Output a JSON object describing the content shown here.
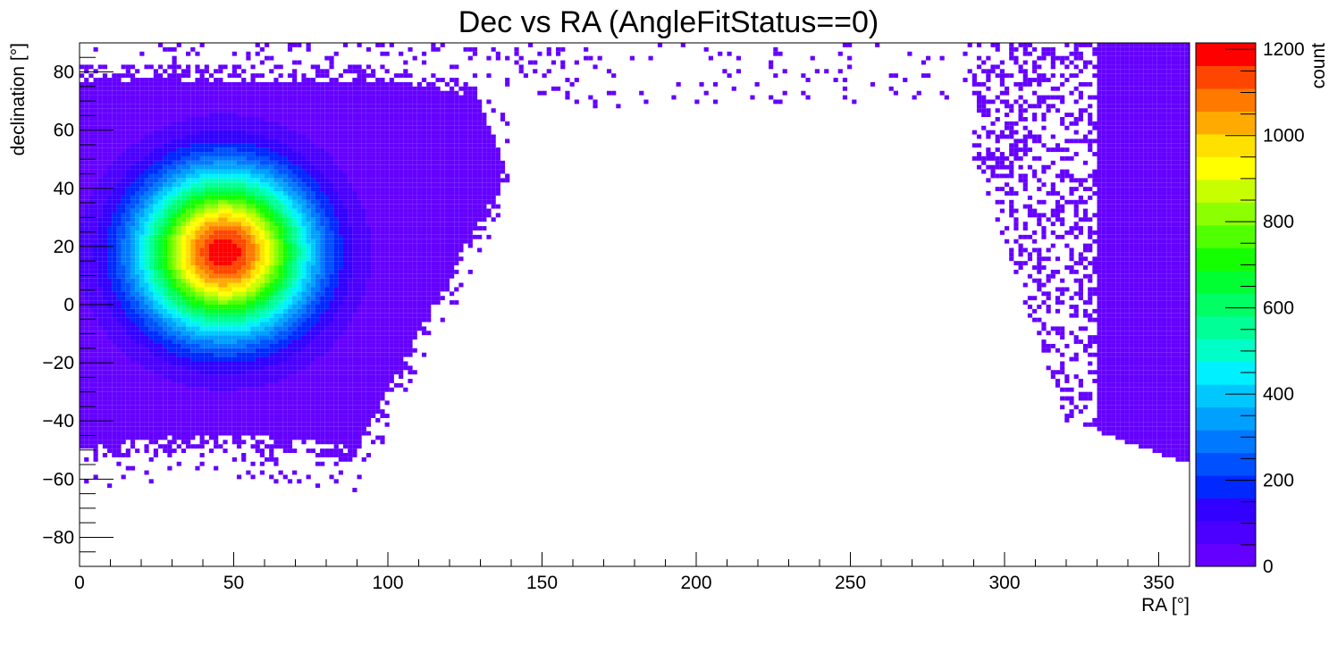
{
  "chart_data": {
    "type": "heatmap",
    "title": "Dec vs RA (AngleFitStatus==0)",
    "xlabel": "RA [°]",
    "ylabel": "declination [°]",
    "zlabel": "count",
    "xlim": [
      0,
      360
    ],
    "ylim": [
      -90,
      90
    ],
    "zlim": [
      0,
      1215
    ],
    "x_ticks": [
      0,
      50,
      100,
      150,
      200,
      250,
      300,
      350
    ],
    "y_ticks": [
      -80,
      -60,
      -40,
      -20,
      0,
      20,
      40,
      60,
      80
    ],
    "z_ticks": [
      0,
      200,
      400,
      600,
      800,
      1000,
      1200
    ],
    "x_tick_labels": [
      "0",
      "50",
      "100",
      "150",
      "200",
      "250",
      "300",
      "350"
    ],
    "y_tick_labels": [
      "−80",
      "−60",
      "−40",
      "−20",
      "0",
      "20",
      "40",
      "60",
      "80"
    ],
    "z_tick_labels": [
      "0",
      "200",
      "400",
      "600",
      "800",
      "1000",
      "1200"
    ],
    "hotspot": {
      "ra": 47,
      "dec": 18,
      "peak_count": 1200
    },
    "coverage": "dense band RA 0–130 and 320–360, sparse arc reaching dec ~ 85 between RA 150 and 320",
    "grid": false,
    "legend": "color scale right",
    "palette": [
      "#6400ff",
      "#4b00ff",
      "#3200ff",
      "#0028ff",
      "#0050ff",
      "#0078ff",
      "#00a0ff",
      "#00c8ff",
      "#00f0ff",
      "#00ffc8",
      "#00ff96",
      "#00ff64",
      "#00ff32",
      "#14ff00",
      "#50ff00",
      "#8cff00",
      "#c8ff00",
      "#ffff00",
      "#ffe100",
      "#ffaa00",
      "#ff7800",
      "#ff4600",
      "#ff0000"
    ]
  }
}
